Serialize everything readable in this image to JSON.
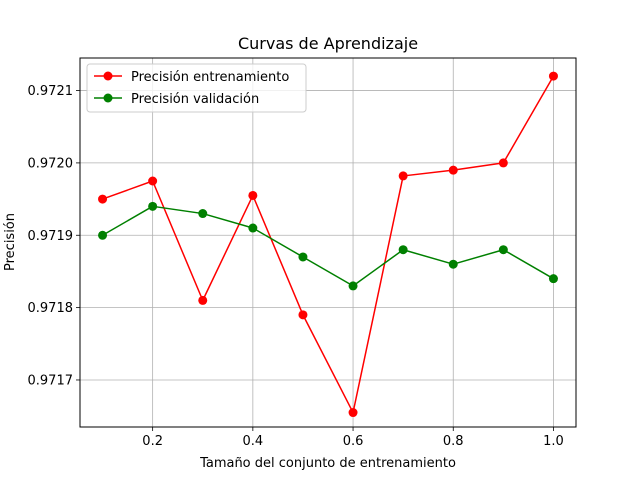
{
  "chart_data": {
    "type": "line",
    "title": "Curvas de Aprendizaje",
    "xlabel": "Tamaño del conjunto de entrenamiento",
    "ylabel": "Precisión",
    "x": [
      0.1,
      0.2,
      0.3,
      0.4,
      0.5,
      0.6,
      0.7,
      0.8,
      0.9,
      1.0
    ],
    "xlim": [
      0.055,
      1.045
    ],
    "ylim": [
      0.971635,
      0.972145
    ],
    "x_ticks": [
      0.2,
      0.4,
      0.6,
      0.8,
      1.0
    ],
    "x_tick_labels": [
      "0.2",
      "0.4",
      "0.6",
      "0.8",
      "1.0"
    ],
    "y_ticks": [
      0.9717,
      0.9718,
      0.9719,
      0.972,
      0.9721
    ],
    "y_tick_labels": [
      "0.9717",
      "0.9718",
      "0.9719",
      "0.9720",
      "0.9721"
    ],
    "grid": true,
    "legend_position": "top-left",
    "series": [
      {
        "name": "Precisión entrenamiento",
        "color": "#ff0000",
        "marker": "circle",
        "values": [
          0.97195,
          0.971975,
          0.97181,
          0.971955,
          0.97179,
          0.971655,
          0.971982,
          0.97199,
          0.972,
          0.97212
        ]
      },
      {
        "name": "Precisión validación",
        "color": "#008000",
        "marker": "circle",
        "values": [
          0.9719,
          0.97194,
          0.97193,
          0.97191,
          0.97187,
          0.97183,
          0.97188,
          0.97186,
          0.97188,
          0.97184
        ]
      }
    ]
  }
}
